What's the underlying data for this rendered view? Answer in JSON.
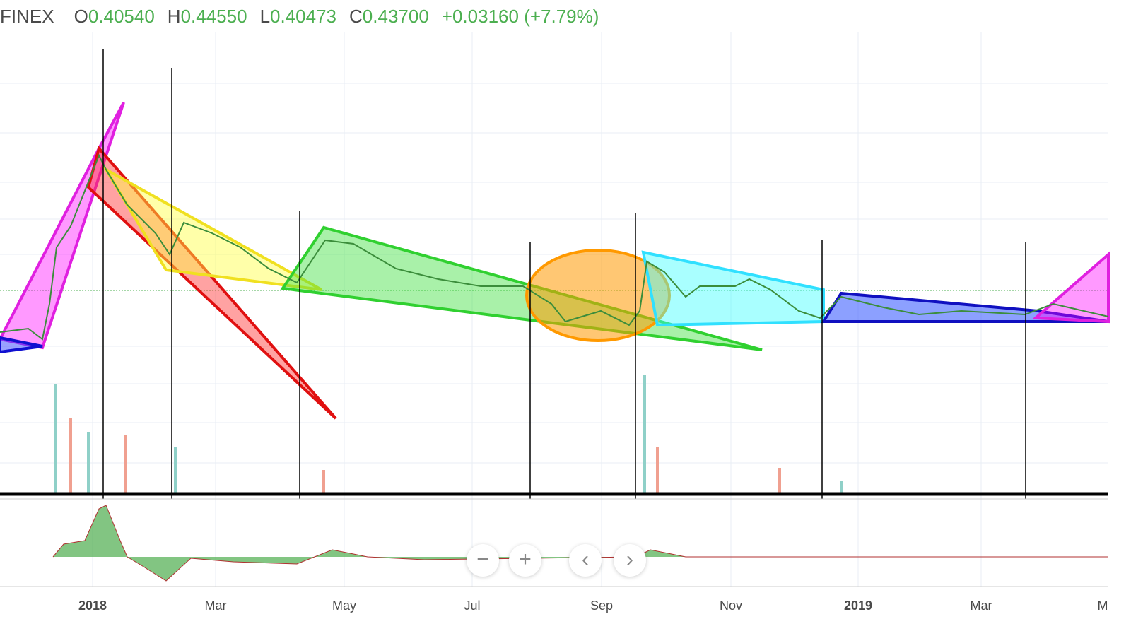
{
  "header": {
    "symbol": "FINEX",
    "ohlc": [
      {
        "label": "O",
        "value": "0.40540"
      },
      {
        "label": "H",
        "value": "0.44550"
      },
      {
        "label": "L",
        "value": "0.40473"
      },
      {
        "label": "C",
        "value": "0.43700"
      }
    ],
    "change": "+0.03160 (+7.79%)"
  },
  "time_axis": {
    "labels": [
      "2018",
      "Mar",
      "May",
      "Jul",
      "Sep",
      "Nov",
      "2019",
      "Mar",
      "M"
    ]
  }
}
